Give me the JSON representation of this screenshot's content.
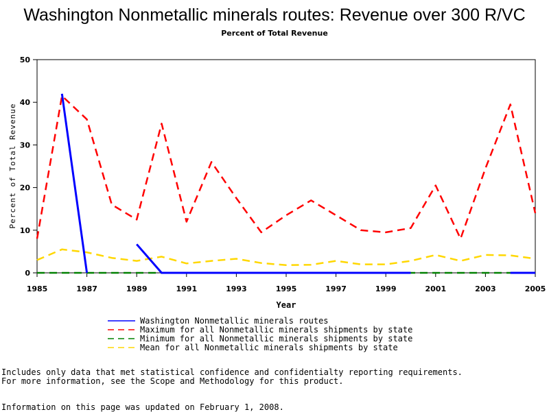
{
  "chart_data": {
    "type": "line",
    "title": "Washington Nonmetallic minerals routes: Revenue over 300 R/VC",
    "subtitle": "Percent of Total Revenue",
    "xlabel": "Year",
    "ylabel": "Percent of Total Revenue",
    "xlim": [
      1985,
      2005
    ],
    "ylim": [
      0,
      50
    ],
    "xticks": [
      "1985",
      "1987",
      "1989",
      "1991",
      "1993",
      "1995",
      "1997",
      "1999",
      "2001",
      "2003",
      "2005"
    ],
    "yticks": [
      "0",
      "10",
      "20",
      "30",
      "40",
      "50"
    ],
    "grid": false,
    "legend_position": "bottom",
    "series": [
      {
        "name": "Washington Nonmetallic minerals routes",
        "color": "#0000ff",
        "style": "solid",
        "points": [
          [
            1986,
            42
          ],
          [
            1987,
            0
          ],
          null,
          [
            1989,
            6.7
          ],
          [
            1990,
            0
          ],
          [
            1991,
            0
          ],
          [
            1992,
            0
          ],
          [
            1993,
            0
          ],
          [
            1994,
            0
          ],
          [
            1995,
            0
          ],
          [
            1996,
            0
          ],
          [
            1997,
            0
          ],
          [
            1998,
            0
          ],
          [
            1999,
            0
          ],
          [
            2000,
            0
          ],
          null,
          [
            2004,
            0
          ],
          [
            2005,
            0
          ]
        ]
      },
      {
        "name": "Maximum for all Nonmetallic minerals shipments by state",
        "color": "#ff0000",
        "style": "dashed",
        "points": [
          [
            1985,
            8
          ],
          [
            1986,
            41.5
          ],
          [
            1987,
            36
          ],
          [
            1988,
            16
          ],
          [
            1989,
            12.5
          ],
          [
            1990,
            35
          ],
          [
            1991,
            12
          ],
          [
            1992,
            26
          ],
          [
            1993,
            17.5
          ],
          [
            1994,
            9.5
          ],
          [
            1995,
            13.5
          ],
          [
            1996,
            17
          ],
          [
            1997,
            13.5
          ],
          [
            1998,
            10
          ],
          [
            1999,
            9.5
          ],
          [
            2000,
            10.5
          ],
          [
            2001,
            20.5
          ],
          [
            2002,
            8
          ],
          [
            2003,
            24.5
          ],
          [
            2004,
            39.5
          ],
          [
            2005,
            14
          ]
        ]
      },
      {
        "name": "Minimum for all Nonmetallic minerals shipments by state",
        "color": "#008000",
        "style": "dashed",
        "points": [
          [
            1985,
            0
          ],
          [
            1986,
            0
          ],
          [
            1987,
            0
          ],
          [
            1988,
            0
          ],
          [
            1989,
            0
          ],
          [
            1990,
            0
          ],
          [
            1991,
            0
          ],
          [
            1992,
            0
          ],
          [
            1993,
            0
          ],
          [
            1994,
            0
          ],
          [
            1995,
            0
          ],
          [
            1996,
            0
          ],
          [
            1997,
            0
          ],
          [
            1998,
            0
          ],
          [
            1999,
            0
          ],
          [
            2000,
            0
          ],
          [
            2001,
            0
          ],
          [
            2002,
            0
          ],
          [
            2003,
            0
          ],
          [
            2004,
            0
          ],
          [
            2005,
            0
          ]
        ]
      },
      {
        "name": "Mean for all Nonmetallic minerals shipments by state",
        "color": "#ffd700",
        "style": "dashed",
        "points": [
          [
            1985,
            3
          ],
          [
            1986,
            5.5
          ],
          [
            1987,
            4.8
          ],
          [
            1988,
            3.5
          ],
          [
            1989,
            2.8
          ],
          [
            1990,
            3.8
          ],
          [
            1991,
            2.2
          ],
          [
            1992,
            2.8
          ],
          [
            1993,
            3.3
          ],
          [
            1994,
            2.3
          ],
          [
            1995,
            1.8
          ],
          [
            1996,
            1.9
          ],
          [
            1997,
            2.8
          ],
          [
            1998,
            2
          ],
          [
            1999,
            2
          ],
          [
            2000,
            2.8
          ],
          [
            2001,
            4.2
          ],
          [
            2002,
            2.8
          ],
          [
            2003,
            4.2
          ],
          [
            2004,
            4.1
          ],
          [
            2005,
            3.3
          ]
        ]
      }
    ]
  },
  "footnotes": {
    "line1": "Includes only data that met statistical confidence and confidentialty reporting requirements.",
    "line2": "For more information, see the Scope and Methodology for this product.",
    "line3": "Information on this page was updated on February 1, 2008."
  }
}
